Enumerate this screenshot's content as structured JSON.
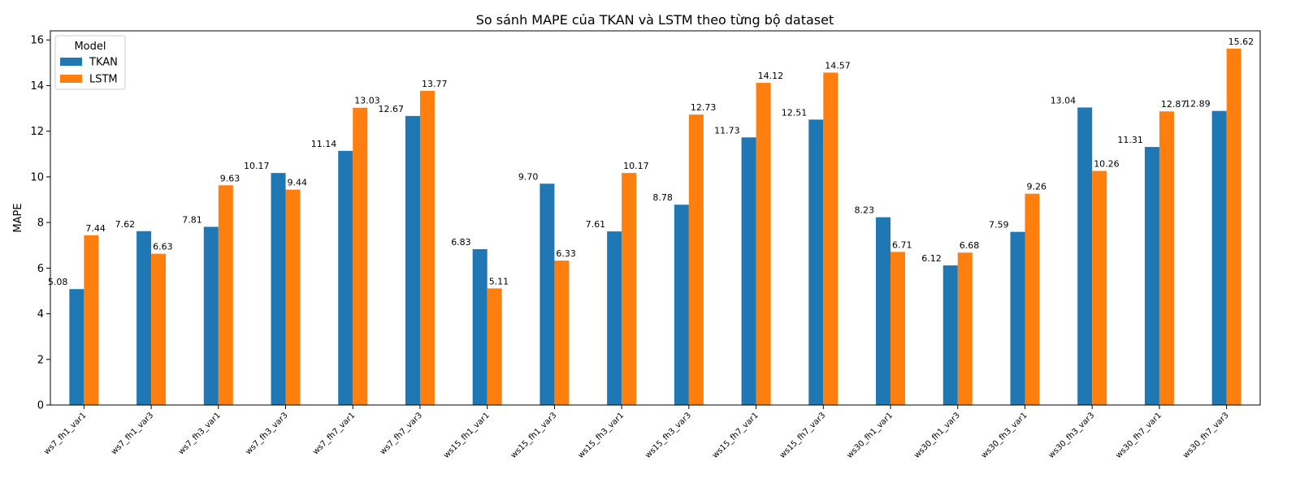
{
  "chart_data": {
    "type": "bar",
    "title": "So sánh MAPE của TKAN và LSTM theo từng bộ dataset",
    "xlabel": "",
    "ylabel": "MAPE",
    "ylim": [
      0,
      16.4
    ],
    "yticks": [
      0,
      2,
      4,
      6,
      8,
      10,
      12,
      14,
      16
    ],
    "grid": false,
    "legend": {
      "title": "Model",
      "placement": "top-left"
    },
    "categories": [
      "ws7_fh1_var1",
      "ws7_fh1_var3",
      "ws7_fh3_var1",
      "ws7_fh3_var3",
      "ws7_fh7_var1",
      "ws7_fh7_var3",
      "ws15_fh1_var1",
      "ws15_fh1_var3",
      "ws15_fh3_var1",
      "ws15_fh3_var3",
      "ws15_fh7_var1",
      "ws15_fh7_var3",
      "ws30_fh1_var1",
      "ws30_fh1_var3",
      "ws30_fh3_var1",
      "ws30_fh3_var3",
      "ws30_fh7_var1",
      "ws30_fh7_var3"
    ],
    "series": [
      {
        "name": "TKAN",
        "color": "#1f77b4",
        "values": [
          5.08,
          7.62,
          7.81,
          10.17,
          11.14,
          12.67,
          6.83,
          9.7,
          7.61,
          8.78,
          11.73,
          12.51,
          8.23,
          6.12,
          7.59,
          13.04,
          11.31,
          12.89
        ],
        "labels": [
          "5.08",
          "7.62",
          "7.81",
          "10.17",
          "11.14",
          "12.67",
          "6.83",
          "9.70",
          "7.61",
          "8.78",
          "11.73",
          "12.51",
          "8.23",
          "6.12",
          "7.59",
          "13.04",
          "11.31",
          "12.89"
        ]
      },
      {
        "name": "LSTM",
        "color": "#ff7f0e",
        "values": [
          7.44,
          6.63,
          9.63,
          9.44,
          13.03,
          13.77,
          5.11,
          6.33,
          10.17,
          12.73,
          14.12,
          14.57,
          6.71,
          6.68,
          9.26,
          10.26,
          12.87,
          15.62
        ],
        "labels": [
          "7.44",
          "6.63",
          "9.63",
          "9.44",
          "13.03",
          "13.77",
          "5.11",
          "6.33",
          "10.17",
          "12.73",
          "14.12",
          "14.57",
          "6.71",
          "6.68",
          "9.26",
          "10.26",
          "12.87",
          "15.62"
        ]
      }
    ]
  }
}
